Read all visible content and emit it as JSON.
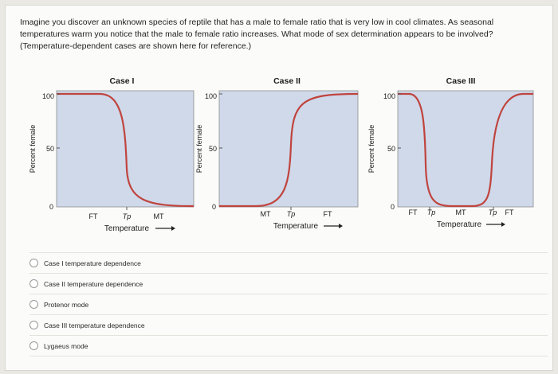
{
  "question": "Imagine you discover an unknown species of reptile that has a male to female ratio that is very low in cool climates. As seasonal temperatures warm you notice that the male to female ratio increases. What mode of sex determination appears to be involved? (Temperature-dependent cases are shown here for reference.)",
  "figure": {
    "ylabel": "Percent female",
    "xlabel": "Temperature",
    "panel_color": "#cfd9ea",
    "curve_color": "#c0443e",
    "panels": [
      {
        "title": "Case I",
        "ticks": [
          "100",
          "50",
          "0"
        ],
        "x_labels": [
          "FT",
          "Tp",
          "MT"
        ]
      },
      {
        "title": "Case II",
        "ticks": [
          "100",
          "50",
          "0"
        ],
        "x_labels": [
          "MT",
          "Tp",
          "FT"
        ]
      },
      {
        "title": "Case III",
        "ticks": [
          "100",
          "50",
          "0"
        ],
        "x_labels": [
          "FT",
          "Tp",
          "MT",
          "Tp",
          "FT"
        ]
      }
    ]
  },
  "options": [
    "Case I temperature dependence",
    "Case II temperature dependence",
    "Protenor mode",
    "Case III temperature dependence",
    "Lygaeus mode"
  ]
}
